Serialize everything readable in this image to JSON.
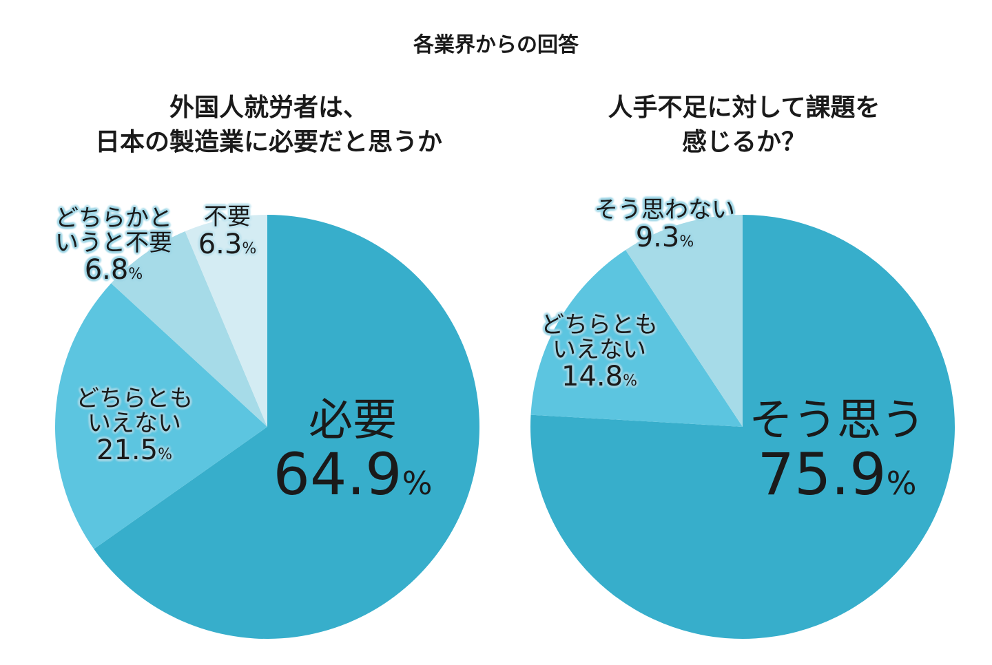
{
  "title": "各業界からの回答",
  "chart_data": [
    {
      "type": "pie",
      "title": [
        "外国人就労者は、",
        "日本の製造業に必要だと思うか"
      ],
      "unit": "%",
      "slices": [
        {
          "label": [
            "必要"
          ],
          "value": 64.9,
          "display": "64.9",
          "color": "#37aecb"
        },
        {
          "label": [
            "どちらとも",
            "いえない"
          ],
          "value": 21.5,
          "display": "21.5",
          "color": "#5cc5e0"
        },
        {
          "label": [
            "どちらかと",
            "いうと不要"
          ],
          "value": 6.8,
          "display": "6.8",
          "color": "#a6dbe8"
        },
        {
          "label": [
            "不要"
          ],
          "value": 6.3,
          "display": "6.3",
          "color": "#d4ecf3"
        }
      ]
    },
    {
      "type": "pie",
      "title": [
        "人手不足に対して課題を",
        "感じるか？"
      ],
      "unit": "%",
      "slices": [
        {
          "label": [
            "そう思う"
          ],
          "value": 75.9,
          "display": "75.9",
          "color": "#37aecb"
        },
        {
          "label": [
            "どちらとも",
            "いえない"
          ],
          "value": 14.8,
          "display": "14.8",
          "color": "#5cc5e0"
        },
        {
          "label": [
            "そう思わない"
          ],
          "value": 9.3,
          "display": "9.3",
          "color": "#a6dbe8"
        }
      ]
    }
  ]
}
